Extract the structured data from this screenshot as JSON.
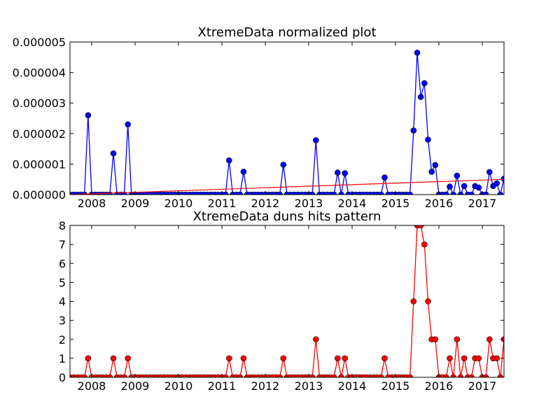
{
  "chart_data": [
    {
      "type": "line",
      "title": "XtremeData normalized plot",
      "xlabel": "",
      "ylabel": "",
      "xlim": [
        "2007-07",
        "2017-07"
      ],
      "ylim": [
        0,
        5e-06
      ],
      "x_ticks": [
        "2008",
        "2009",
        "2010",
        "2011",
        "2012",
        "2013",
        "2014",
        "2015",
        "2016",
        "2017"
      ],
      "y_ticks": [
        "0.000000",
        "0.000001",
        "0.000002",
        "0.000003",
        "0.000004",
        "0.000005"
      ],
      "grid": false,
      "colors": {
        "series": "#0000ff",
        "trend": "#ff0000"
      },
      "series": [
        {
          "x": [
            "2007-07",
            "2007-08",
            "2007-09",
            "2007-10",
            "2007-11",
            "2007-12",
            "2008-01",
            "2008-02",
            "2008-03",
            "2008-04",
            "2008-05",
            "2008-06",
            "2008-07",
            "2008-08",
            "2008-09",
            "2008-10",
            "2008-11",
            "2008-12",
            "2009-01",
            "2009-02",
            "2009-03",
            "2009-04",
            "2009-05",
            "2009-06",
            "2009-07",
            "2009-08",
            "2009-09",
            "2009-10",
            "2009-11",
            "2009-12",
            "2010-01",
            "2010-02",
            "2010-03",
            "2010-04",
            "2010-05",
            "2010-06",
            "2010-07",
            "2010-08",
            "2010-09",
            "2010-10",
            "2010-11",
            "2010-12",
            "2011-01",
            "2011-02",
            "2011-03",
            "2011-04",
            "2011-05",
            "2011-06",
            "2011-07",
            "2011-08",
            "2011-09",
            "2011-10",
            "2011-11",
            "2011-12",
            "2012-01",
            "2012-02",
            "2012-03",
            "2012-04",
            "2012-05",
            "2012-06",
            "2012-07",
            "2012-08",
            "2012-09",
            "2012-10",
            "2012-11",
            "2012-12",
            "2013-01",
            "2013-02",
            "2013-03",
            "2013-04",
            "2013-05",
            "2013-06",
            "2013-07",
            "2013-08",
            "2013-09",
            "2013-10",
            "2013-11",
            "2013-12",
            "2014-01",
            "2014-02",
            "2014-03",
            "2014-04",
            "2014-05",
            "2014-06",
            "2014-07",
            "2014-08",
            "2014-09",
            "2014-10",
            "2014-11",
            "2014-12",
            "2015-01",
            "2015-02",
            "2015-03",
            "2015-04",
            "2015-05",
            "2015-06",
            "2015-07",
            "2015-08",
            "2015-09",
            "2015-10",
            "2015-11",
            "2015-12",
            "2016-01",
            "2016-02",
            "2016-03",
            "2016-04",
            "2016-05",
            "2016-06",
            "2016-07",
            "2016-08",
            "2016-09",
            "2016-10",
            "2016-11",
            "2016-12",
            "2017-01",
            "2017-02",
            "2017-03",
            "2017-04",
            "2017-05",
            "2017-06",
            "2017-07"
          ],
          "values": [
            0,
            0,
            0,
            0,
            0,
            2.6e-06,
            0,
            0,
            0,
            0,
            0,
            0,
            1.35e-06,
            0,
            0,
            0,
            2.3e-06,
            0,
            0,
            0,
            0,
            0,
            0,
            0,
            0,
            0,
            0,
            0,
            0,
            0,
            0,
            0,
            0,
            0,
            0,
            0,
            0,
            0,
            0,
            0,
            0,
            0,
            0,
            0,
            1.12e-06,
            0,
            0,
            0,
            7.5e-07,
            0,
            0,
            0,
            0,
            0,
            0,
            0,
            0,
            0,
            0,
            9.8e-07,
            0,
            0,
            0,
            0,
            0,
            0,
            0,
            0,
            1.78e-06,
            0,
            0,
            0,
            0,
            0,
            7.2e-07,
            0,
            7e-07,
            0,
            0,
            0,
            0,
            0,
            0,
            0,
            0,
            0,
            0,
            5.6e-07,
            0,
            0,
            0,
            0,
            0,
            0,
            0,
            2.1e-06,
            4.65e-06,
            3.2e-06,
            3.65e-06,
            1.8e-06,
            7.5e-07,
            9.7e-07,
            0,
            0,
            0,
            2.6e-07,
            0,
            6.2e-07,
            0,
            2.8e-07,
            0,
            0,
            2.8e-07,
            2.3e-07,
            0,
            0,
            7.4e-07,
            2.8e-07,
            3.7e-07,
            0,
            5.2e-07
          ]
        }
      ],
      "trend": {
        "x": [
          "2007-07",
          "2017-07"
        ],
        "values": [
          0,
          5e-07
        ]
      }
    },
    {
      "type": "line",
      "title": "XtremeData duns hits pattern",
      "xlabel": "",
      "ylabel": "",
      "xlim": [
        "2007-07",
        "2017-07"
      ],
      "ylim": [
        0,
        8
      ],
      "x_ticks": [
        "2008",
        "2009",
        "2010",
        "2011",
        "2012",
        "2013",
        "2014",
        "2015",
        "2016",
        "2017"
      ],
      "y_ticks": [
        "0",
        "1",
        "2",
        "3",
        "4",
        "5",
        "6",
        "7",
        "8"
      ],
      "grid": false,
      "colors": {
        "series": "#ff0000"
      },
      "series": [
        {
          "x": [
            "2007-07",
            "2007-08",
            "2007-09",
            "2007-10",
            "2007-11",
            "2007-12",
            "2008-01",
            "2008-02",
            "2008-03",
            "2008-04",
            "2008-05",
            "2008-06",
            "2008-07",
            "2008-08",
            "2008-09",
            "2008-10",
            "2008-11",
            "2008-12",
            "2009-01",
            "2009-02",
            "2009-03",
            "2009-04",
            "2009-05",
            "2009-06",
            "2009-07",
            "2009-08",
            "2009-09",
            "2009-10",
            "2009-11",
            "2009-12",
            "2010-01",
            "2010-02",
            "2010-03",
            "2010-04",
            "2010-05",
            "2010-06",
            "2010-07",
            "2010-08",
            "2010-09",
            "2010-10",
            "2010-11",
            "2010-12",
            "2011-01",
            "2011-02",
            "2011-03",
            "2011-04",
            "2011-05",
            "2011-06",
            "2011-07",
            "2011-08",
            "2011-09",
            "2011-10",
            "2011-11",
            "2011-12",
            "2012-01",
            "2012-02",
            "2012-03",
            "2012-04",
            "2012-05",
            "2012-06",
            "2012-07",
            "2012-08",
            "2012-09",
            "2012-10",
            "2012-11",
            "2012-12",
            "2013-01",
            "2013-02",
            "2013-03",
            "2013-04",
            "2013-05",
            "2013-06",
            "2013-07",
            "2013-08",
            "2013-09",
            "2013-10",
            "2013-11",
            "2013-12",
            "2014-01",
            "2014-02",
            "2014-03",
            "2014-04",
            "2014-05",
            "2014-06",
            "2014-07",
            "2014-08",
            "2014-09",
            "2014-10",
            "2014-11",
            "2014-12",
            "2015-01",
            "2015-02",
            "2015-03",
            "2015-04",
            "2015-05",
            "2015-06",
            "2015-07",
            "2015-08",
            "2015-09",
            "2015-10",
            "2015-11",
            "2015-12",
            "2016-01",
            "2016-02",
            "2016-03",
            "2016-04",
            "2016-05",
            "2016-06",
            "2016-07",
            "2016-08",
            "2016-09",
            "2016-10",
            "2016-11",
            "2016-12",
            "2017-01",
            "2017-02",
            "2017-03",
            "2017-04",
            "2017-05",
            "2017-06",
            "2017-07"
          ],
          "values": [
            0,
            0,
            0,
            0,
            0,
            1,
            0,
            0,
            0,
            0,
            0,
            0,
            1,
            0,
            0,
            0,
            1,
            0,
            0,
            0,
            0,
            0,
            0,
            0,
            0,
            0,
            0,
            0,
            0,
            0,
            0,
            0,
            0,
            0,
            0,
            0,
            0,
            0,
            0,
            0,
            0,
            0,
            0,
            0,
            1,
            0,
            0,
            0,
            1,
            0,
            0,
            0,
            0,
            0,
            0,
            0,
            0,
            0,
            0,
            1,
            0,
            0,
            0,
            0,
            0,
            0,
            0,
            0,
            2,
            0,
            0,
            0,
            0,
            0,
            1,
            0,
            1,
            0,
            0,
            0,
            0,
            0,
            0,
            0,
            0,
            0,
            0,
            1,
            0,
            0,
            0,
            0,
            0,
            0,
            0,
            4,
            8,
            8,
            7,
            4,
            2,
            2,
            0,
            0,
            0,
            1,
            0,
            2,
            0,
            1,
            0,
            0,
            1,
            1,
            0,
            0,
            2,
            1,
            1,
            0,
            2
          ]
        }
      ]
    }
  ]
}
